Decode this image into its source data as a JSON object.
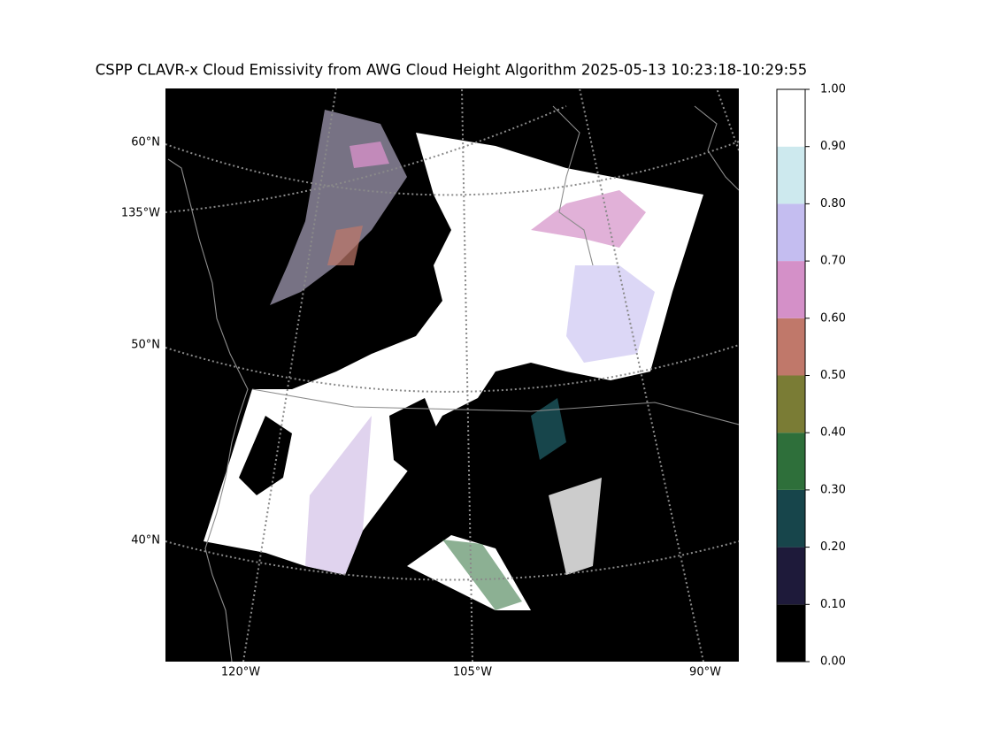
{
  "title": "CSPP CLAVR-x Cloud Emissivity from AWG Cloud Height Algorithm 2025-05-13 10:23:18-10:29:55",
  "map": {
    "lat_labels": [
      "60°N",
      "135°W",
      "50°N",
      "40°N"
    ],
    "lon_labels": [
      "120°W",
      "105°W",
      "90°W"
    ]
  },
  "colorbar": {
    "ticks": [
      {
        "value": 0,
        "label": "0.00"
      },
      {
        "value": 0.1,
        "label": "0.10"
      },
      {
        "value": 0.2,
        "label": "0.20"
      },
      {
        "value": 0.3,
        "label": "0.30"
      },
      {
        "value": 0.4,
        "label": "0.40"
      },
      {
        "value": 0.5,
        "label": "0.50"
      },
      {
        "value": 0.6,
        "label": "0.60"
      },
      {
        "value": 0.7,
        "label": "0.70"
      },
      {
        "value": 0.8,
        "label": "0.80"
      },
      {
        "value": 0.9,
        "label": "0.90"
      },
      {
        "value": 1,
        "label": "1.00"
      }
    ],
    "lim": [
      0,
      1
    ],
    "colors": [
      "#000000",
      "#1e1a3a",
      "#17454b",
      "#2e6f3a",
      "#7a7c35",
      "#c0786a",
      "#d490c8",
      "#c4bdf0",
      "#cde9ee",
      "#ffffff"
    ]
  }
}
